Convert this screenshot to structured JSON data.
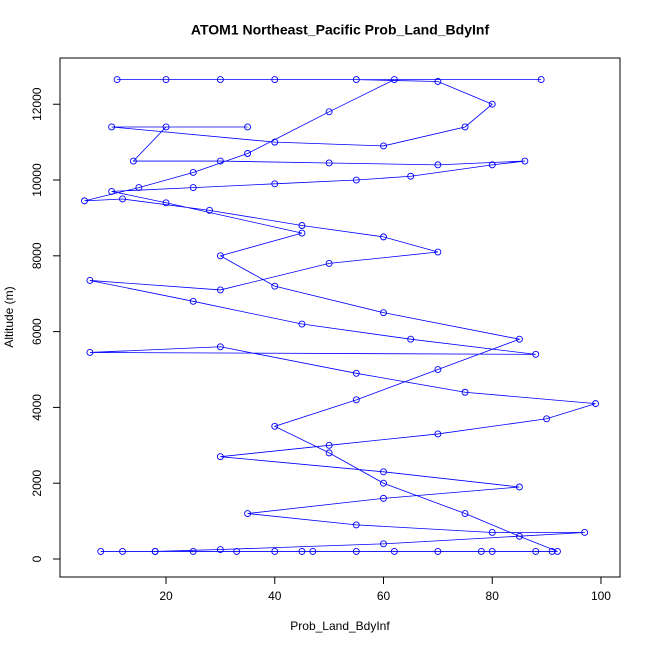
{
  "chart_data": {
    "type": "line",
    "title": "ATOM1 Northeast_Pacific Prob_Land_BdyInf",
    "x_label": "Prob_Land_BdyInf",
    "y_label": "Altitude (m)",
    "xlim": [
      0.5,
      103.5
    ],
    "ylim": [
      -475,
      13220
    ],
    "xticks": [
      20,
      40,
      60,
      80,
      100
    ],
    "yticks": [
      0,
      2000,
      4000,
      6000,
      8000,
      10000,
      12000
    ],
    "markers": true,
    "x": [
      8,
      12,
      18,
      25,
      33,
      40,
      47,
      55,
      62,
      70,
      78,
      88,
      92,
      85,
      75,
      60,
      50,
      40,
      55,
      70,
      85,
      60,
      40,
      30,
      45,
      20,
      10,
      25,
      40,
      55,
      65,
      80,
      86,
      70,
      50,
      30,
      14,
      20,
      35,
      10,
      40,
      60,
      75,
      80,
      70,
      55,
      40,
      20,
      11,
      30,
      89,
      62,
      50,
      35,
      25,
      15,
      5,
      12,
      28,
      45,
      60,
      70,
      50,
      30,
      6,
      25,
      45,
      65,
      88,
      6,
      30,
      55,
      75,
      99,
      90,
      70,
      50,
      30,
      60,
      85,
      60,
      35,
      55,
      80,
      97,
      60,
      30,
      18,
      45,
      80,
      91
    ],
    "series": [
      {
        "name": "Prob_Land_BdyInf",
        "color": "#0000ff",
        "values": [
          200,
          200,
          200,
          200,
          200,
          200,
          200,
          200,
          200,
          200,
          200,
          200,
          200,
          600,
          1200,
          2000,
          2800,
          3500,
          4200,
          5000,
          5800,
          6500,
          7200,
          8000,
          8600,
          9400,
          9700,
          9800,
          9900,
          10000,
          10100,
          10400,
          10500,
          10400,
          10450,
          10500,
          10500,
          11400,
          11400,
          11400,
          11000,
          10900,
          11400,
          12000,
          12600,
          12650,
          12650,
          12650,
          12650,
          12650,
          12650,
          12650,
          11800,
          10700,
          10200,
          9800,
          9450,
          9500,
          9200,
          8800,
          8500,
          8100,
          7800,
          7100,
          7350,
          6800,
          6200,
          5800,
          5400,
          5450,
          5600,
          4900,
          4400,
          4100,
          3700,
          3300,
          3000,
          2700,
          2300,
          1900,
          1600,
          1200,
          900,
          700,
          700,
          400,
          250,
          200,
          200,
          200,
          200
        ]
      }
    ]
  }
}
